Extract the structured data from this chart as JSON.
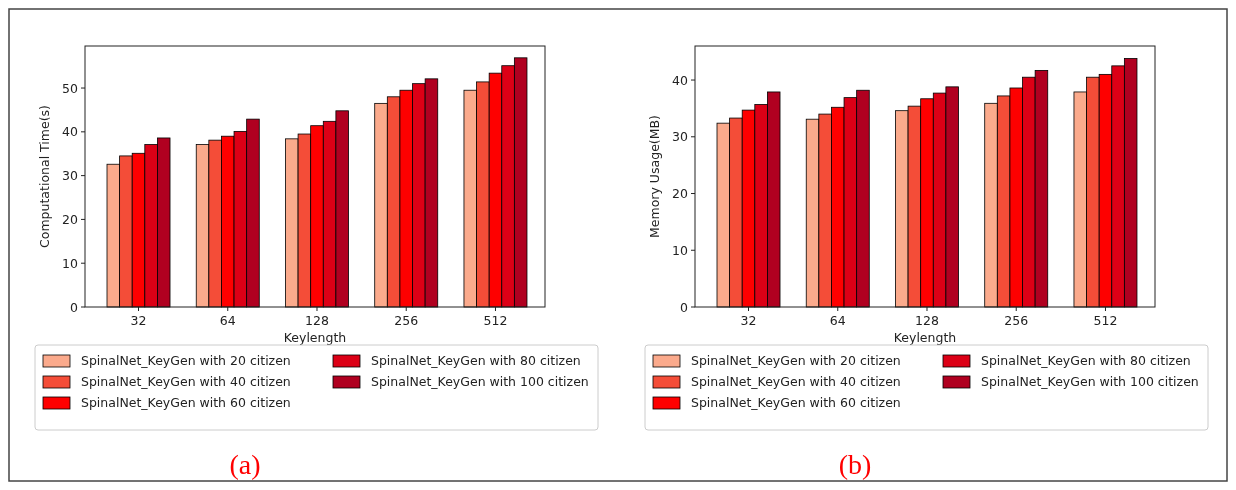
{
  "chart_data": [
    {
      "type": "bar",
      "xlabel": "Keylength",
      "ylabel": "Computational Time(s)",
      "categories": [
        "32",
        "64",
        "128",
        "256",
        "512"
      ],
      "ylim": [
        0,
        59.6
      ],
      "yticks": [
        0,
        10,
        20,
        30,
        40,
        50
      ],
      "legend": "bottom",
      "annotations": [
        "(a)"
      ],
      "series": [
        {
          "name": "SpinalNet_KeyGen with 20 citizen",
          "color": "#fbaa8c",
          "values": [
            32.6,
            37.1,
            38.4,
            46.5,
            49.5
          ]
        },
        {
          "name": "SpinalNet_KeyGen with 40 citizen",
          "color": "#f44d38",
          "values": [
            34.5,
            38.1,
            39.5,
            48.0,
            51.4
          ]
        },
        {
          "name": "SpinalNet_KeyGen with 60 citizen",
          "color": "#fe0000",
          "values": [
            35.1,
            39.0,
            41.4,
            49.5,
            53.4
          ]
        },
        {
          "name": "SpinalNet_KeyGen with 80 citizen",
          "color": "#dc0016",
          "values": [
            37.1,
            40.1,
            42.4,
            51.0,
            55.1
          ]
        },
        {
          "name": "SpinalNet_KeyGen with 100 citizen",
          "color": "#b00020",
          "values": [
            38.6,
            42.9,
            44.8,
            52.1,
            56.9
          ]
        }
      ]
    },
    {
      "type": "bar",
      "xlabel": "Keylength",
      "ylabel": "Memory Usage(MB)",
      "categories": [
        "32",
        "64",
        "128",
        "256",
        "512"
      ],
      "ylim": [
        0,
        46
      ],
      "yticks": [
        0,
        10,
        20,
        30,
        40
      ],
      "legend": "bottom",
      "annotations": [
        "(b)"
      ],
      "series": [
        {
          "name": "SpinalNet_KeyGen with 20 citizen",
          "color": "#fbaa8c",
          "values": [
            32.4,
            33.1,
            34.6,
            35.9,
            37.9
          ]
        },
        {
          "name": "SpinalNet_KeyGen with 40 citizen",
          "color": "#f44d38",
          "values": [
            33.3,
            34.0,
            35.4,
            37.2,
            40.5
          ]
        },
        {
          "name": "SpinalNet_KeyGen with 60 citizen",
          "color": "#fe0000",
          "values": [
            34.7,
            35.2,
            36.7,
            38.6,
            41.0
          ]
        },
        {
          "name": "SpinalNet_KeyGen with 80 citizen",
          "color": "#dc0016",
          "values": [
            35.7,
            36.9,
            37.7,
            40.5,
            42.5
          ]
        },
        {
          "name": "SpinalNet_KeyGen with 100 citizen",
          "color": "#b00020",
          "values": [
            37.9,
            38.2,
            38.8,
            41.7,
            43.8
          ]
        }
      ]
    }
  ]
}
